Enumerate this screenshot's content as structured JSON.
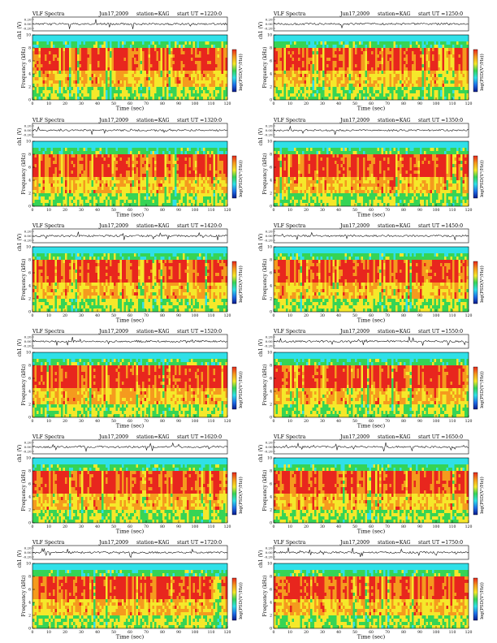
{
  "page": {
    "title": "VLF Spectra"
  },
  "axes": {
    "xlabel": "Time (sec)",
    "ylabel_freq": "Frequency (kHz)",
    "ylabel_wave": "ch1 (V)",
    "colorbar_label": "log(PSD(V²/Hz))",
    "xlim": [
      0,
      120
    ],
    "xticks": [
      0,
      10,
      20,
      30,
      40,
      50,
      60,
      70,
      80,
      90,
      100,
      110,
      120
    ],
    "ylim_freq": [
      0,
      10
    ],
    "yticks_freq": [
      0,
      2,
      4,
      6,
      8,
      10
    ],
    "yticks_wave": [
      "0.20",
      "0.00",
      "-0.20"
    ]
  },
  "colors": {
    "low": "#0a1a8c",
    "blue": "#1e6ee8",
    "cyan": "#2fe0e8",
    "green": "#36d455",
    "yellow": "#f5e82a",
    "orange": "#f59a1e",
    "red": "#e8261e",
    "trace": "#000000"
  },
  "chart_data": [
    {
      "type": "heatmap",
      "title": "VLF Spectra",
      "date": "Jun17,2009",
      "station": "station=KAG",
      "start": "start  UT =1220:0"
    },
    {
      "type": "heatmap",
      "title": "VLF Spectra",
      "date": "Jun17,2009",
      "station": "station=KAG",
      "start": "start  UT =1250:0"
    },
    {
      "type": "heatmap",
      "title": "VLF Spectra",
      "date": "Jun17,2009",
      "station": "station=KAG",
      "start": "start  UT =1320:0"
    },
    {
      "type": "heatmap",
      "title": "VLF Spectra",
      "date": "Jun17,2009",
      "station": "station=KAG",
      "start": "start  UT =1350:0"
    },
    {
      "type": "heatmap",
      "title": "VLF Spectra",
      "date": "Jun17,2009",
      "station": "station=KAG",
      "start": "start  UT =1420:0"
    },
    {
      "type": "heatmap",
      "title": "VLF Spectra",
      "date": "Jun17,2009",
      "station": "station=KAG",
      "start": "start  UT =1450:0"
    },
    {
      "type": "heatmap",
      "title": "VLF Spectra",
      "date": "Jun17,2009",
      "station": "station=KAG",
      "start": "start  UT =1520:0"
    },
    {
      "type": "heatmap",
      "title": "VLF Spectra",
      "date": "Jun17,2009",
      "station": "station=KAG",
      "start": "start  UT =1550:0"
    },
    {
      "type": "heatmap",
      "title": "VLF Spectra",
      "date": "Jun17,2009",
      "station": "station=KAG",
      "start": "start  UT =1620:0"
    },
    {
      "type": "heatmap",
      "title": "VLF Spectra",
      "date": "Jun17,2009",
      "station": "station=KAG",
      "start": "start  UT =1650:0"
    },
    {
      "type": "heatmap",
      "title": "VLF Spectra",
      "date": "Jun17,2009",
      "station": "station=KAG",
      "start": "start  UT =1720:0"
    },
    {
      "type": "heatmap",
      "title": "VLF Spectra",
      "date": "Jun17,2009",
      "station": "station=KAG",
      "start": "start  UT =1750:0"
    }
  ]
}
